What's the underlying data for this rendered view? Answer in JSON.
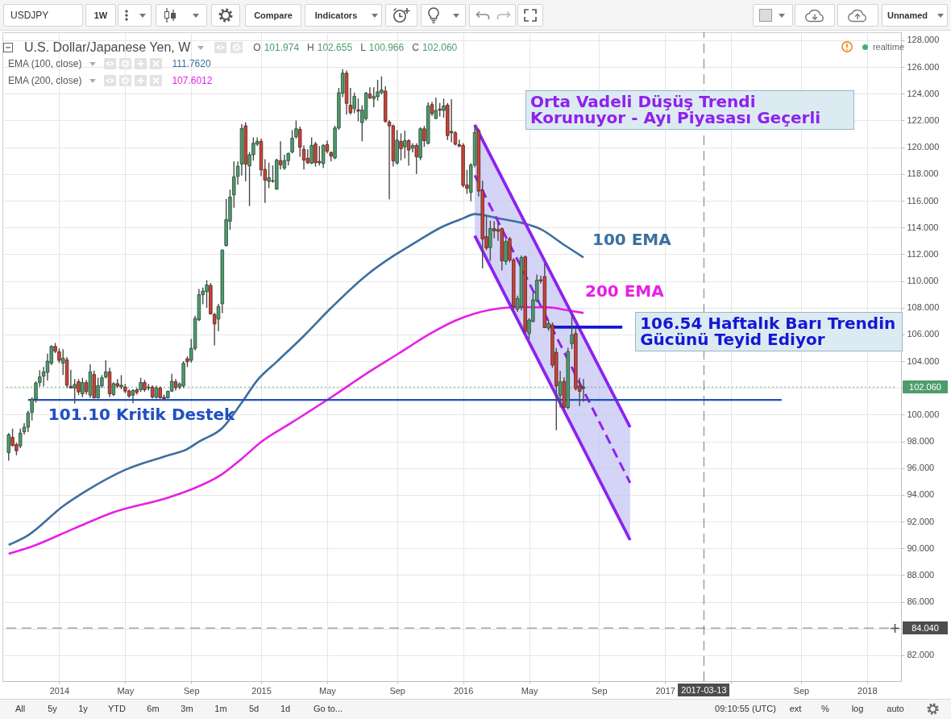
{
  "chart_data": {
    "type": "candlestick",
    "title": "U.S. Dollar/Japanese Yen, W",
    "subtitle": "O 101.974 H 102.655 L 100.966 C 102.060",
    "x": [
      "2013-10-07",
      "2013-10-14",
      "2013-10-21",
      "2013-10-28",
      "2013-11-04",
      "2013-11-11",
      "2013-11-18",
      "2013-11-25",
      "2013-12-02",
      "2013-12-09",
      "2013-12-16",
      "2013-12-23",
      "2013-12-30",
      "2014-01-06",
      "2014-01-13",
      "2014-01-20",
      "2014-01-27",
      "2014-02-03",
      "2014-02-10",
      "2014-02-17",
      "2014-02-24",
      "2014-03-03",
      "2014-03-10",
      "2014-03-17",
      "2014-03-24",
      "2014-03-31",
      "2014-04-07",
      "2014-04-14",
      "2014-04-21",
      "2014-04-28",
      "2014-05-05",
      "2014-05-12",
      "2014-05-19",
      "2014-05-26",
      "2014-06-02",
      "2014-06-09",
      "2014-06-16",
      "2014-06-23",
      "2014-06-30",
      "2014-07-07",
      "2014-07-14",
      "2014-07-21",
      "2014-07-28",
      "2014-08-04",
      "2014-08-11",
      "2014-08-18",
      "2014-08-25",
      "2014-09-01",
      "2014-09-08",
      "2014-09-15",
      "2014-09-22",
      "2014-09-29",
      "2014-10-06",
      "2014-10-13",
      "2014-10-20",
      "2014-10-27",
      "2014-11-03",
      "2014-11-10",
      "2014-11-17",
      "2014-11-24",
      "2014-12-01",
      "2014-12-08",
      "2014-12-15",
      "2014-12-22",
      "2014-12-29",
      "2015-01-05",
      "2015-01-12",
      "2015-01-19",
      "2015-01-26",
      "2015-02-02",
      "2015-02-09",
      "2015-02-16",
      "2015-02-23",
      "2015-03-02",
      "2015-03-09",
      "2015-03-16",
      "2015-03-23",
      "2015-03-30",
      "2015-04-06",
      "2015-04-13",
      "2015-04-20",
      "2015-04-27",
      "2015-05-04",
      "2015-05-11",
      "2015-05-18",
      "2015-05-25",
      "2015-06-01",
      "2015-06-08",
      "2015-06-15",
      "2015-06-22",
      "2015-06-29",
      "2015-07-06",
      "2015-07-13",
      "2015-07-20",
      "2015-07-27",
      "2015-08-03",
      "2015-08-10",
      "2015-08-17",
      "2015-08-24",
      "2015-08-31",
      "2015-09-07",
      "2015-09-14",
      "2015-09-21",
      "2015-09-28",
      "2015-10-05",
      "2015-10-12",
      "2015-10-19",
      "2015-10-26",
      "2015-11-02",
      "2015-11-09",
      "2015-11-16",
      "2015-11-23",
      "2015-11-30",
      "2015-12-07",
      "2015-12-14",
      "2015-12-21",
      "2015-12-28",
      "2016-01-04",
      "2016-01-11",
      "2016-01-18",
      "2016-01-25",
      "2016-02-01",
      "2016-02-08",
      "2016-02-15",
      "2016-02-22",
      "2016-02-29",
      "2016-03-07",
      "2016-03-14",
      "2016-03-21",
      "2016-03-28",
      "2016-04-04",
      "2016-04-11",
      "2016-04-18",
      "2016-04-25",
      "2016-05-02",
      "2016-05-09",
      "2016-05-16",
      "2016-05-23",
      "2016-05-30",
      "2016-06-06",
      "2016-06-13",
      "2016-06-20",
      "2016-06-27",
      "2016-07-04",
      "2016-07-11",
      "2016-07-18",
      "2016-07-25",
      "2016-08-01",
      "2016-08-08"
    ],
    "ohlc": [
      [
        97.16,
        98.62,
        96.56,
        98.5
      ],
      [
        98.3,
        98.96,
        97.6,
        97.7
      ],
      [
        97.76,
        97.9,
        96.96,
        97.3
      ],
      [
        97.66,
        98.96,
        97.5,
        98.62
      ],
      [
        98.72,
        99.36,
        98.5,
        99.06
      ],
      [
        99.06,
        100.3,
        98.7,
        100.12
      ],
      [
        100.16,
        101.3,
        99.56,
        101.16
      ],
      [
        101.16,
        102.5,
        100.9,
        102.36
      ],
      [
        102.4,
        103.32,
        102.1,
        102.82
      ],
      [
        102.88,
        103.56,
        102.12,
        103.2
      ],
      [
        103.16,
        104.56,
        102.56,
        104.0
      ],
      [
        103.86,
        105.2,
        103.7,
        105.1
      ],
      [
        105.1,
        105.36,
        104.6,
        104.74
      ],
      [
        104.7,
        104.96,
        103.86,
        104.06
      ],
      [
        103.86,
        104.9,
        102.96,
        104.22
      ],
      [
        104.1,
        104.3,
        102.0,
        102.2
      ],
      [
        102.12,
        103.36,
        101.96,
        102.0
      ],
      [
        101.98,
        102.66,
        100.82,
        102.26
      ],
      [
        102.46,
        102.66,
        101.46,
        101.7
      ],
      [
        101.56,
        102.76,
        101.3,
        102.4
      ],
      [
        102.4,
        102.6,
        101.5,
        101.72
      ],
      [
        101.46,
        103.76,
        101.26,
        103.2
      ],
      [
        103.0,
        103.3,
        101.2,
        101.26
      ],
      [
        101.26,
        102.76,
        101.2,
        102.16
      ],
      [
        102.16,
        102.96,
        102.0,
        102.76
      ],
      [
        102.82,
        104.06,
        102.7,
        103.2
      ],
      [
        103.2,
        103.5,
        101.3,
        101.56
      ],
      [
        101.5,
        102.42,
        101.4,
        102.32
      ],
      [
        102.32,
        102.66,
        102.0,
        102.14
      ],
      [
        102.08,
        102.96,
        101.9,
        102.2
      ],
      [
        102.06,
        102.3,
        101.6,
        101.76
      ],
      [
        101.76,
        101.9,
        101.26,
        101.4
      ],
      [
        101.46,
        101.9,
        100.86,
        101.8
      ],
      [
        101.86,
        102.0,
        101.5,
        101.66
      ],
      [
        101.86,
        102.76,
        101.7,
        102.4
      ],
      [
        102.4,
        102.6,
        101.7,
        101.86
      ],
      [
        102.0,
        102.3,
        101.8,
        102.06
      ],
      [
        102.06,
        102.2,
        101.2,
        101.32
      ],
      [
        101.3,
        102.16,
        101.2,
        102.0
      ],
      [
        102.0,
        102.1,
        101.2,
        101.26
      ],
      [
        101.3,
        101.5,
        101.16,
        101.2
      ],
      [
        101.26,
        101.8,
        101.2,
        101.74
      ],
      [
        101.76,
        103.06,
        101.7,
        102.5
      ],
      [
        102.46,
        102.66,
        101.8,
        102.02
      ],
      [
        102.06,
        102.4,
        101.9,
        102.3
      ],
      [
        102.16,
        104.0,
        102.0,
        103.84
      ],
      [
        104.18,
        104.36,
        103.56,
        103.96
      ],
      [
        104.06,
        105.66,
        103.9,
        104.96
      ],
      [
        104.96,
        107.4,
        104.8,
        107.2
      ],
      [
        107.09,
        109.4,
        107.0,
        108.97
      ],
      [
        108.97,
        109.5,
        108.25,
        109.24
      ],
      [
        109.2,
        110.06,
        107.99,
        109.7
      ],
      [
        109.66,
        109.84,
        107.5,
        107.53
      ],
      [
        107.49,
        107.6,
        105.18,
        106.78
      ],
      [
        107.15,
        108.29,
        106.24,
        108.09
      ],
      [
        108.29,
        112.35,
        107.59,
        112.31
      ],
      [
        112.65,
        116.13,
        112.57,
        114.58
      ],
      [
        114.46,
        116.83,
        113.82,
        116.27
      ],
      [
        116.43,
        118.94,
        115.47,
        117.78
      ],
      [
        117.82,
        118.94,
        117.2,
        118.58
      ],
      [
        118.74,
        121.72,
        117.88,
        121.4
      ],
      [
        121.6,
        121.86,
        117.44,
        118.74
      ],
      [
        118.6,
        119.64,
        115.6,
        119.44
      ],
      [
        119.44,
        120.74,
        119.0,
        120.3
      ],
      [
        120.24,
        120.74,
        120.1,
        120.44
      ],
      [
        120.44,
        120.64,
        117.84,
        118.3
      ],
      [
        118.34,
        119.1,
        115.84,
        117.54
      ],
      [
        117.44,
        118.84,
        116.94,
        117.72
      ],
      [
        117.5,
        118.64,
        117.34,
        117.46
      ],
      [
        116.88,
        119.14,
        116.8,
        119.04
      ],
      [
        119.0,
        120.44,
        118.34,
        118.68
      ],
      [
        118.44,
        119.44,
        118.3,
        119.0
      ],
      [
        119.0,
        119.6,
        118.64,
        119.54
      ],
      [
        119.64,
        121.28,
        119.54,
        120.68
      ],
      [
        120.78,
        122.0,
        120.64,
        121.38
      ],
      [
        121.34,
        121.54,
        119.28,
        120.0
      ],
      [
        119.84,
        120.14,
        118.34,
        119.04
      ],
      [
        119.18,
        119.84,
        118.74,
        118.84
      ],
      [
        118.8,
        120.74,
        118.74,
        120.14
      ],
      [
        120.24,
        120.4,
        118.54,
        118.84
      ],
      [
        118.94,
        120.08,
        118.64,
        118.84
      ],
      [
        118.78,
        120.24,
        118.44,
        120.14
      ],
      [
        120.2,
        120.5,
        119.54,
        119.7
      ],
      [
        119.6,
        119.7,
        118.94,
        119.34
      ],
      [
        119.2,
        121.6,
        119.1,
        121.44
      ],
      [
        121.44,
        124.44,
        121.3,
        124.08
      ],
      [
        124.04,
        125.84,
        123.74,
        125.54
      ],
      [
        125.54,
        125.74,
        122.44,
        123.28
      ],
      [
        123.14,
        124.44,
        122.44,
        122.58
      ],
      [
        122.88,
        124.08,
        122.54,
        123.8
      ],
      [
        122.8,
        123.64,
        121.94,
        122.7
      ],
      [
        121.84,
        123.14,
        120.44,
        122.78
      ],
      [
        122.14,
        124.14,
        122.0,
        124.04
      ],
      [
        123.98,
        124.48,
        123.6,
        123.7
      ],
      [
        123.64,
        124.48,
        123.0,
        123.8
      ],
      [
        123.78,
        125.04,
        123.48,
        124.14
      ],
      [
        124.08,
        125.3,
        123.94,
        124.28
      ],
      [
        124.2,
        124.56,
        121.84,
        121.94
      ],
      [
        121.88,
        122.04,
        116.1,
        121.6
      ],
      [
        121.6,
        121.7,
        118.56,
        118.98
      ],
      [
        118.82,
        121.28,
        118.7,
        120.53
      ],
      [
        120.43,
        121.04,
        119.02,
        119.89
      ],
      [
        120.03,
        121.24,
        119.16,
        120.49
      ],
      [
        120.49,
        120.6,
        118.62,
        119.79
      ],
      [
        119.93,
        120.29,
        119.62,
        120.13
      ],
      [
        120.13,
        120.3,
        118.01,
        119.28
      ],
      [
        119.22,
        121.5,
        119.02,
        121.38
      ],
      [
        121.38,
        121.6,
        120.03,
        120.49
      ],
      [
        120.29,
        123.35,
        120.2,
        123.09
      ],
      [
        123.19,
        123.4,
        122.35,
        122.51
      ],
      [
        122.15,
        123.7,
        122.1,
        122.75
      ],
      [
        122.85,
        123.31,
        122.29,
        122.77
      ],
      [
        122.75,
        123.64,
        122.21,
        123.09
      ],
      [
        123.15,
        123.3,
        120.53,
        120.87
      ],
      [
        121.18,
        123.6,
        120.37,
        121.08
      ],
      [
        121.08,
        121.2,
        120.13,
        120.23
      ],
      [
        120.19,
        120.57,
        120.0,
        120.09
      ],
      [
        120.13,
        120.3,
        117.0,
        117.15
      ],
      [
        117.17,
        118.31,
        116.5,
        116.92
      ],
      [
        116.62,
        118.8,
        115.96,
        118.67
      ],
      [
        118.67,
        121.65,
        118.5,
        121.1
      ],
      [
        121.25,
        121.4,
        116.32,
        116.72
      ],
      [
        116.76,
        117.49,
        110.93,
        113.15
      ],
      [
        113.31,
        114.81,
        112.3,
        112.46
      ],
      [
        112.5,
        114.51,
        111.5,
        113.91
      ],
      [
        113.91,
        114.47,
        113.2,
        113.75
      ],
      [
        113.85,
        114.41,
        113.0,
        113.71
      ],
      [
        113.91,
        114.0,
        110.79,
        111.5
      ],
      [
        111.46,
        113.1,
        111.2,
        112.94
      ],
      [
        113.15,
        113.3,
        111.4,
        111.56
      ],
      [
        111.56,
        111.7,
        107.7,
        108.08
      ],
      [
        107.88,
        108.9,
        107.68,
        108.68
      ],
      [
        108.08,
        111.9,
        107.78,
        111.74
      ],
      [
        111.8,
        111.9,
        106.07,
        106.23
      ],
      [
        106.07,
        107.2,
        105.67,
        107.08
      ],
      [
        106.98,
        109.09,
        106.9,
        108.58
      ],
      [
        108.52,
        110.49,
        108.4,
        110.05
      ],
      [
        110.09,
        110.39,
        109.8,
        110.01
      ],
      [
        110.33,
        111.3,
        106.47,
        106.51
      ],
      [
        106.47,
        107.08,
        106.27,
        106.83
      ],
      [
        106.71,
        106.9,
        103.5,
        103.7
      ],
      [
        104.66,
        105.0,
        98.83,
        102.15
      ],
      [
        101.45,
        103.26,
        100.54,
        102.45
      ],
      [
        102.49,
        102.8,
        100.4,
        100.54
      ],
      [
        100.54,
        105.0,
        100.4,
        104.72
      ],
      [
        105.31,
        107.48,
        104.9,
        105.97
      ],
      [
        106.07,
        106.54,
        101.8,
        101.95
      ],
      [
        102.15,
        102.75,
        100.64,
        101.75
      ],
      [
        101.974,
        102.655,
        100.966,
        102.06
      ]
    ],
    "colors": [
      "#4e9c6c",
      "#c5443a",
      "#c5443a",
      "#4e9c6c",
      "#4e9c6c",
      "#4e9c6c",
      "#4e9c6c",
      "#4e9c6c",
      "#4e9c6c",
      "#4e9c6c",
      "#4e9c6c",
      "#4e9c6c",
      "#c5443a",
      "#c5443a",
      "#4e9c6c",
      "#c5443a",
      "#c5443a",
      "#4e9c6c",
      "#c5443a",
      "#4e9c6c",
      "#c5443a",
      "#4e9c6c",
      "#c5443a",
      "#4e9c6c",
      "#4e9c6c",
      "#4e9c6c",
      "#c5443a",
      "#4e9c6c",
      "#c5443a",
      "#4e9c6c",
      "#c5443a",
      "#c5443a",
      "#4e9c6c",
      "#c5443a",
      "#4e9c6c",
      "#c5443a",
      "#4e9c6c",
      "#c5443a",
      "#4e9c6c",
      "#c5443a",
      "#c5443a",
      "#4e9c6c",
      "#4e9c6c",
      "#c5443a",
      "#4e9c6c",
      "#4e9c6c",
      "#c5443a",
      "#4e9c6c",
      "#4e9c6c",
      "#4e9c6c",
      "#4e9c6c",
      "#4e9c6c",
      "#c5443a",
      "#c5443a",
      "#4e9c6c",
      "#4e9c6c",
      "#4e9c6c",
      "#4e9c6c",
      "#4e9c6c",
      "#4e9c6c",
      "#4e9c6c",
      "#c5443a",
      "#4e9c6c",
      "#4e9c6c",
      "#4e9c6c",
      "#c5443a",
      "#c5443a",
      "#4e9c6c",
      "#c5443a",
      "#4e9c6c",
      "#c5443a",
      "#4e9c6c",
      "#4e9c6c",
      "#4e9c6c",
      "#4e9c6c",
      "#c5443a",
      "#c5443a",
      "#c5443a",
      "#4e9c6c",
      "#c5443a",
      "#c5443a",
      "#4e9c6c",
      "#c5443a",
      "#c5443a",
      "#4e9c6c",
      "#4e9c6c",
      "#4e9c6c",
      "#c5443a",
      "#c5443a",
      "#4e9c6c",
      "#c5443a",
      "#4e9c6c",
      "#4e9c6c",
      "#c5443a",
      "#4e9c6c",
      "#4e9c6c",
      "#4e9c6c",
      "#c5443a",
      "#c5443a",
      "#c5443a",
      "#4e9c6c",
      "#c5443a",
      "#4e9c6c",
      "#c5443a",
      "#4e9c6c",
      "#c5443a",
      "#4e9c6c",
      "#c5443a",
      "#4e9c6c",
      "#c5443a",
      "#4e9c6c",
      "#c5443a",
      "#4e9c6c",
      "#c5443a",
      "#c5443a",
      "#c5443a",
      "#c5443a",
      "#c5443a",
      "#c5443a",
      "#4e9c6c",
      "#4e9c6c",
      "#c5443a",
      "#c5443a",
      "#c5443a",
      "#4e9c6c",
      "#c5443a",
      "#c5443a",
      "#c5443a",
      "#4e9c6c",
      "#c5443a",
      "#c5443a",
      "#4e9c6c",
      "#4e9c6c",
      "#c5443a",
      "#4e9c6c",
      "#4e9c6c",
      "#4e9c6c",
      "#c5443a",
      "#c5443a",
      "#4e9c6c",
      "#c5443a",
      "#c5443a",
      "#4e9c6c",
      "#c5443a",
      "#4e9c6c",
      "#4e9c6c",
      "#c5443a",
      "#c5443a",
      "#4e9c6c"
    ],
    "series": [
      {
        "name": "100 EMA",
        "type": "line",
        "color": "#3d6f9f",
        "x": [
          "2013-10-07",
          "2013-11-11",
          "2014-01-13",
          "2014-02-24",
          "2014-05-05",
          "2014-07-21",
          "2014-08-25",
          "2014-09-15",
          "2014-10-27",
          "2014-12-01",
          "2014-12-29",
          "2015-02-02",
          "2015-03-23",
          "2015-05-11",
          "2015-07-13",
          "2015-08-31",
          "2015-10-05",
          "2015-11-30",
          "2016-01-04",
          "2016-01-25",
          "2016-03-07",
          "2016-04-18",
          "2016-05-23",
          "2016-07-04",
          "2016-08-08"
        ],
        "values": [
          90.26,
          90.98,
          93.15,
          94.3,
          95.87,
          96.95,
          97.43,
          97.98,
          99.0,
          100.9,
          102.56,
          103.95,
          105.89,
          107.98,
          110.4,
          111.86,
          112.75,
          114.1,
          114.68,
          115.0,
          114.69,
          114.35,
          113.87,
          112.7,
          111.762
        ]
      },
      {
        "name": "200 EMA",
        "type": "line",
        "color": "#e620e6",
        "x": [
          "2013-10-07",
          "2013-11-18",
          "2014-02-03",
          "2014-04-14",
          "2014-07-21",
          "2014-09-01",
          "2014-10-27",
          "2014-12-01",
          "2015-01-05",
          "2015-03-02",
          "2015-05-11",
          "2015-07-13",
          "2015-09-07",
          "2015-11-09",
          "2015-12-21",
          "2016-01-25",
          "2016-03-14",
          "2016-04-18",
          "2016-06-06",
          "2016-07-11",
          "2016-08-08"
        ],
        "values": [
          89.6,
          90.14,
          91.5,
          92.7,
          93.79,
          94.4,
          95.56,
          96.7,
          97.96,
          99.43,
          101.29,
          103.05,
          104.5,
          106.13,
          107.03,
          107.56,
          107.97,
          108.04,
          108.02,
          107.8,
          107.6012
        ]
      },
      {
        "name": "Orta Vadeli Düşüş Trendi\nKorunuyor - Ayı Piyasası Geçerli",
        "type": "line",
        "color": "#8e22ee",
        "line_style": "dashed",
        "x": [
          "2016-01-25",
          "2016-10-31"
        ],
        "values": [
          117.9,
          94.9
        ],
        "lower": [
          113.38,
          90.62
        ],
        "upper": [
          121.67,
          99.06
        ]
      },
      {
        "type": "line",
        "color": "#8e22ee",
        "x": [
          "2016-01-25",
          "2016-10-31"
        ],
        "values": [
          121.67,
          99.06
        ]
      },
      {
        "type": "line",
        "color": "#8e22ee",
        "x": [
          "2016-01-25",
          "2016-10-31"
        ],
        "values": [
          113.38,
          90.62
        ]
      },
      {
        "name": "101.10 Kritik Destek",
        "type": "line",
        "color": "#1f4fc2",
        "x": [
          "2013-11-11",
          "2017-07-31"
        ],
        "values": [
          101.1,
          101.1
        ]
      },
      {
        "name": "106.54 Haftalık Barı Trendin\nGücünü Teyid Ediyor",
        "type": "line",
        "color": "#1418d2",
        "x": [
          "2016-06-13",
          "2016-10-17"
        ],
        "values": [
          106.54,
          106.54
        ]
      }
    ],
    "xlim": [
      "2013-10-03",
      "2018-02-24"
    ],
    "ylim": [
      80.07,
      128.6
    ],
    "xticks": [
      {
        "value": "2014-01-06",
        "label": "2014"
      },
      {
        "value": "2014-05-05",
        "label": "May"
      },
      {
        "value": "2014-09-01",
        "label": "Sep"
      },
      {
        "value": "2015-01-05",
        "label": "2015"
      },
      {
        "value": "2015-05-04",
        "label": "May"
      },
      {
        "value": "2015-09-07",
        "label": "Sep"
      },
      {
        "value": "2016-01-04",
        "label": "2016"
      },
      {
        "value": "2016-05-02",
        "label": "May"
      },
      {
        "value": "2016-09-05",
        "label": "Sep"
      },
      {
        "value": "2017-01-02",
        "label": "2017"
      },
      {
        "value": "2017-05-01",
        "label": null
      },
      {
        "value": "2017-09-04",
        "label": "Sep"
      },
      {
        "value": "2018-01-01",
        "label": "2018"
      }
    ],
    "yticks": [
      {
        "value": 82,
        "label": "82.000"
      },
      {
        "value": 84,
        "label": null
      },
      {
        "value": 86,
        "label": "86.000"
      },
      {
        "value": 88,
        "label": "88.000"
      },
      {
        "value": 90,
        "label": "90.000"
      },
      {
        "value": 92,
        "label": "92.000"
      },
      {
        "value": 94,
        "label": "94.000"
      },
      {
        "value": 96,
        "label": "96.000"
      },
      {
        "value": 98,
        "label": "98.000"
      },
      {
        "value": 100,
        "label": "100.000"
      },
      {
        "value": 102,
        "label": null
      },
      {
        "value": 104,
        "label": "104.000"
      },
      {
        "value": 106,
        "label": "106.000"
      },
      {
        "value": 108,
        "label": "108.000"
      },
      {
        "value": 110,
        "label": "110.000"
      },
      {
        "value": 112,
        "label": "112.000"
      },
      {
        "value": 114,
        "label": "114.000"
      },
      {
        "value": 116,
        "label": "116.000"
      },
      {
        "value": 118,
        "label": "118.000"
      },
      {
        "value": 120,
        "label": "120.000"
      },
      {
        "value": 122,
        "label": "122.000"
      },
      {
        "value": 124,
        "label": "124.000"
      },
      {
        "value": 126,
        "label": "126.000"
      },
      {
        "value": 128,
        "label": "128.000"
      }
    ],
    "grid": true,
    "ref_lines": [
      {
        "axis": "y",
        "value": 102.06,
        "label": "102.060",
        "color": "#4e9c6c",
        "line_style": "dotted"
      },
      {
        "axis": "y",
        "value": 84.04,
        "label": "84.040",
        "color": "#4d4d4d",
        "line_style": "dashed"
      },
      {
        "axis": "x",
        "value": "2017-03-13",
        "label": "2017-03-13",
        "color": "#4d4d4d",
        "line_style": "dashed"
      }
    ],
    "annotations": [
      "USDJPY",
      "1W",
      "Compare",
      "Indicators",
      "Unnamed",
      "EMA (100, close) 111.7620",
      "EMA (200, close) 107.6012",
      "realtime",
      "All",
      "5y",
      "1y",
      "YTD",
      "6m",
      "3m",
      "1m",
      "5d",
      "1d",
      "Go to...",
      "09:10:55 (UTC)",
      "ext",
      "%",
      "log",
      "auto"
    ]
  }
}
